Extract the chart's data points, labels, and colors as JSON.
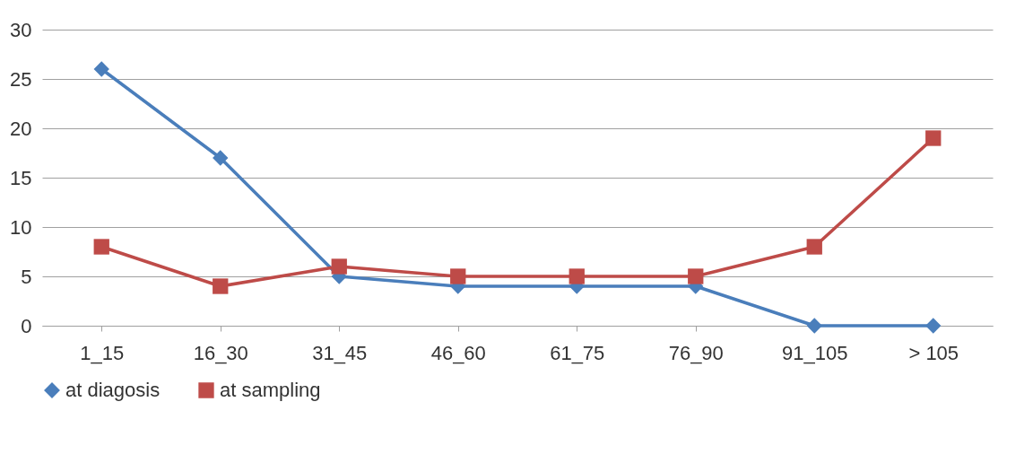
{
  "chart_data": {
    "type": "line",
    "categories": [
      "1_15",
      "16_30",
      "31_45",
      "46_60",
      "61_75",
      "76_90",
      "91_105",
      "> 105"
    ],
    "series": [
      {
        "name": "at diagosis",
        "color": "#4a7ebb",
        "marker": "diamond",
        "values": [
          26,
          17,
          5,
          4,
          4,
          4,
          0,
          0
        ]
      },
      {
        "name": "at sampling",
        "color": "#be4b48",
        "marker": "square",
        "values": [
          8,
          4,
          6,
          5,
          5,
          5,
          8,
          19
        ]
      }
    ],
    "ylim": [
      0,
      30
    ],
    "yticks": [
      0,
      5,
      10,
      15,
      20,
      25,
      30
    ],
    "grid": "y",
    "legend": "bottom",
    "line_style": "solid"
  }
}
